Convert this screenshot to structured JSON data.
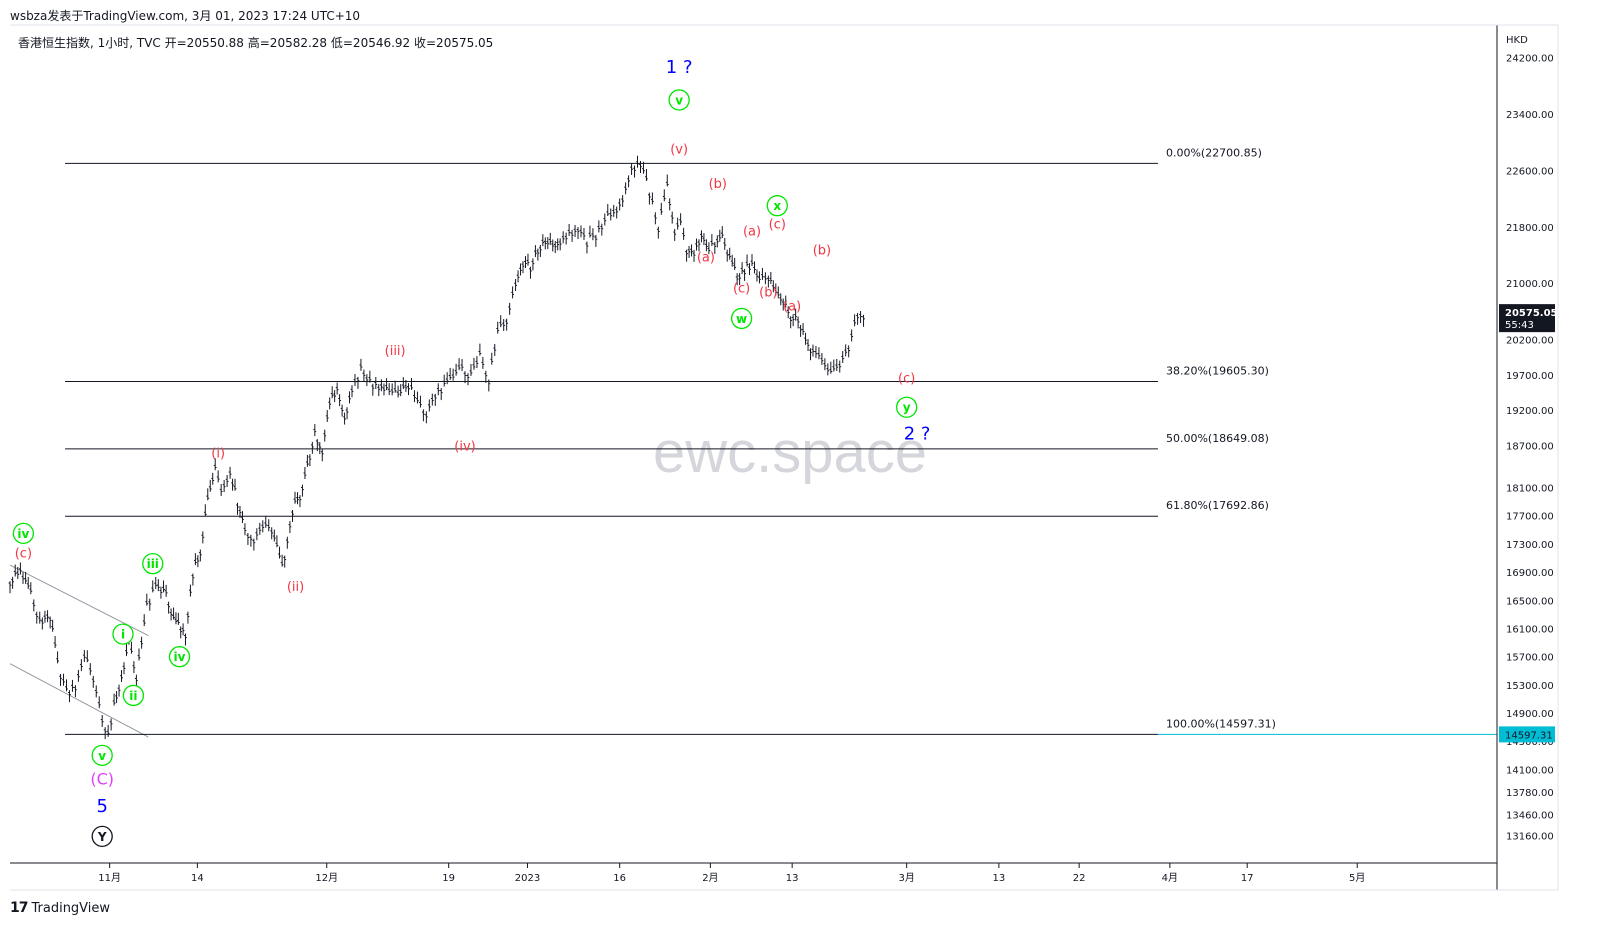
{
  "header": {
    "attribution": "wsbza发表于TradingView.com,  3月 01, 2023 17:24 UTC+10",
    "ohlc": "香港恒生指数, 1小时, TVC  开=20550.88  高=20582.28  低=20546.92  收=20575.05"
  },
  "footer": {
    "brand": "TradingView",
    "logo_text": "17"
  },
  "watermark": "ewc.space",
  "colors": {
    "candle": "#131722",
    "red_label": "#f23645",
    "green_label": "#00e600",
    "blue_label": "#0000ff",
    "magenta_label": "#e040fb",
    "price_box": "#131722",
    "fib_price_box": "#00bcd4"
  },
  "chart_data": {
    "type": "line",
    "currency": "HKD",
    "ylim": [
      12900,
      25000
    ],
    "yticks": [
      24200,
      23400,
      22600,
      21800,
      21000,
      20200,
      19700,
      19200,
      18700,
      18100,
      17700,
      17300,
      16900,
      16500,
      16100,
      15700,
      15300,
      14900,
      14500,
      14100,
      13780,
      13460,
      13160
    ],
    "ytick_labels": [
      "24200.00",
      "23400.00",
      "22600.00",
      "21800.00",
      "21000.00",
      "20200.00",
      "19700.00",
      "19200.00",
      "18700.00",
      "18100.00",
      "17700.00",
      "17300.00",
      "16900.00",
      "16500.00",
      "16100.00",
      "15700.00",
      "15300.00",
      "14900.00",
      "14500.00",
      "14100.00",
      "13780.00",
      "13460.00",
      "13160.00"
    ],
    "xlim": [
      0,
      100
    ],
    "xticks": [
      {
        "t": 6.7,
        "label": "11月"
      },
      {
        "t": 12.6,
        "label": "14"
      },
      {
        "t": 21.3,
        "label": "12月"
      },
      {
        "t": 29.5,
        "label": "19"
      },
      {
        "t": 34.8,
        "label": "2023"
      },
      {
        "t": 41.0,
        "label": "16"
      },
      {
        "t": 47.1,
        "label": "2月"
      },
      {
        "t": 52.6,
        "label": "13"
      },
      {
        "t": 60.3,
        "label": "3月"
      },
      {
        "t": 66.5,
        "label": "13"
      },
      {
        "t": 71.9,
        "label": "22"
      },
      {
        "t": 78.0,
        "label": "4月"
      },
      {
        "t": 83.2,
        "label": "17"
      },
      {
        "t": 90.6,
        "label": "5月"
      }
    ],
    "series": [
      {
        "x": [
          0,
          0.7,
          1.4,
          2.0,
          2.7,
          3.2,
          3.8,
          4.4,
          5.0,
          5.6,
          6.2,
          6.6,
          7.0,
          7.5,
          8.0,
          8.5,
          9.2,
          9.8,
          10.5,
          11.0,
          11.8,
          12.3,
          12.8,
          13.3,
          13.8,
          14.2,
          14.8,
          15.3,
          15.8,
          16.4,
          17.0,
          17.6,
          18.3,
          19.0,
          19.5,
          20.0,
          20.5,
          21.0,
          21.5,
          22.0,
          22.5,
          23.0,
          23.6,
          24.2,
          24.8,
          25.5,
          26.1,
          26.8,
          27.4,
          28.0,
          28.6,
          29.2,
          29.8,
          30.4,
          31.0,
          31.6,
          32.2,
          32.8,
          33.4,
          34.0,
          34.5,
          35.0,
          35.5,
          36.0,
          36.5,
          37.0,
          37.6,
          38.2,
          38.8,
          39.4,
          40.0,
          40.6,
          41.2,
          41.8,
          42.4,
          43.0,
          43.6,
          44.2,
          44.7,
          45.1,
          45.5,
          46.0,
          46.5,
          47.0,
          47.4,
          47.9,
          48.4,
          48.9,
          49.4,
          49.9,
          50.4,
          51.0,
          51.5,
          52.0,
          52.5,
          53.0,
          53.5,
          54.0,
          54.6,
          55.2,
          55.8,
          56.4,
          57.0,
          57.6,
          58.2,
          58.7,
          59.2,
          59.6,
          60.0,
          60.4,
          60.8
        ],
        "values": [
          16800,
          16900,
          16600,
          16200,
          16300,
          15600,
          15200,
          15300,
          15700,
          15400,
          14800,
          14597,
          15000,
          15400,
          15900,
          15400,
          16400,
          16700,
          16600,
          16200,
          16050,
          16900,
          17200,
          17900,
          18350,
          18050,
          18300,
          17900,
          17500,
          17400,
          17550,
          17500,
          16950,
          17800,
          18000,
          18400,
          18900,
          18650,
          19300,
          19500,
          19100,
          19500,
          19800,
          19600,
          19550,
          19450,
          19400,
          19550,
          19300,
          19150,
          19450,
          19550,
          19650,
          19800,
          19700,
          19950,
          19650,
          20300,
          20500,
          21000,
          21300,
          21250,
          21500,
          21600,
          21550,
          21600,
          21700,
          21800,
          21600,
          21700,
          21900,
          22000,
          22200,
          22650,
          22700,
          22300,
          21800,
          22350,
          21750,
          21850,
          21500,
          21450,
          21700,
          21450,
          21600,
          21650,
          21350,
          21100,
          21200,
          21250,
          21050,
          21100,
          20850,
          20750,
          20550,
          20500,
          20200,
          20050,
          19900,
          19700,
          19850,
          20100,
          20575,
          20575,
          20575,
          20575,
          20575,
          20575,
          20575,
          20575,
          20575
        ]
      }
    ],
    "visible_points": 104,
    "fib_levels": [
      {
        "value": 22700.85,
        "label": "0.00%(22700.85)"
      },
      {
        "value": 19605.3,
        "label": "38.20%(19605.30)"
      },
      {
        "value": 18649.08,
        "label": "50.00%(18649.08)"
      },
      {
        "value": 17692.86,
        "label": "61.80%(17692.86)"
      },
      {
        "value": 14597.31,
        "label": "100.00%(14597.31)"
      }
    ],
    "trend_channel": [
      {
        "x1": 0,
        "y1": 17000,
        "x2": 9.3,
        "y2": 16000
      },
      {
        "x1": 0,
        "y1": 15600,
        "x2": 9.3,
        "y2": 14560
      }
    ],
    "current_price": {
      "value": 20575.05,
      "label": "20575.05",
      "sublabel": "55:43"
    },
    "fib_price_tag": {
      "value": 14597.31,
      "label": "14597.31"
    },
    "wave_labels": [
      {
        "text": "iv",
        "t": 0.9,
        "v": 17450,
        "style": "green_circle"
      },
      {
        "text": "(c)",
        "t": 0.9,
        "v": 17180,
        "style": "red"
      },
      {
        "text": "iii",
        "t": 9.6,
        "v": 17020,
        "style": "green_circle"
      },
      {
        "text": "i",
        "t": 7.6,
        "v": 16020,
        "style": "green_circle"
      },
      {
        "text": "iv",
        "t": 11.4,
        "v": 15700,
        "style": "green_circle"
      },
      {
        "text": "ii",
        "t": 8.3,
        "v": 15150,
        "style": "green_circle"
      },
      {
        "text": "v",
        "t": 6.2,
        "v": 14300,
        "style": "green_circle"
      },
      {
        "text": "(C)",
        "t": 6.2,
        "v": 13960,
        "style": "magenta"
      },
      {
        "text": "5",
        "t": 6.2,
        "v": 13570,
        "style": "blue"
      },
      {
        "text": "Y",
        "t": 6.2,
        "v": 13150,
        "style": "black_circle"
      },
      {
        "text": "(i)",
        "t": 14.0,
        "v": 18600,
        "style": "red"
      },
      {
        "text": "(ii)",
        "t": 19.2,
        "v": 16700,
        "style": "red"
      },
      {
        "text": "(iii)",
        "t": 25.9,
        "v": 20050,
        "style": "red"
      },
      {
        "text": "(iv)",
        "t": 30.6,
        "v": 18700,
        "style": "red"
      },
      {
        "text": "1 ?",
        "t": 45.0,
        "v": 24050,
        "style": "blue"
      },
      {
        "text": "v",
        "t": 45.0,
        "v": 23600,
        "style": "green_circle"
      },
      {
        "text": "(v)",
        "t": 45.0,
        "v": 22910,
        "style": "red"
      },
      {
        "text": "(b)",
        "t": 47.6,
        "v": 22420,
        "style": "red"
      },
      {
        "text": "x",
        "t": 51.6,
        "v": 22100,
        "style": "green_circle"
      },
      {
        "text": "(c)",
        "t": 51.6,
        "v": 21850,
        "style": "red"
      },
      {
        "text": "(a)",
        "t": 49.9,
        "v": 21750,
        "style": "red"
      },
      {
        "text": "(a)",
        "t": 46.8,
        "v": 21380,
        "style": "red"
      },
      {
        "text": "(b)",
        "t": 54.6,
        "v": 21480,
        "style": "red"
      },
      {
        "text": "(c)",
        "t": 49.2,
        "v": 20940,
        "style": "red"
      },
      {
        "text": "(b)",
        "t": 51.0,
        "v": 20880,
        "style": "red"
      },
      {
        "text": "(a)",
        "t": 52.6,
        "v": 20680,
        "style": "red"
      },
      {
        "text": "w",
        "t": 49.2,
        "v": 20500,
        "style": "green_circle"
      },
      {
        "text": "(c)",
        "t": 60.3,
        "v": 19660,
        "style": "red"
      },
      {
        "text": "y",
        "t": 60.3,
        "v": 19240,
        "style": "green_circle"
      },
      {
        "text": "2 ?",
        "t": 61.0,
        "v": 18850,
        "style": "blue"
      }
    ]
  }
}
